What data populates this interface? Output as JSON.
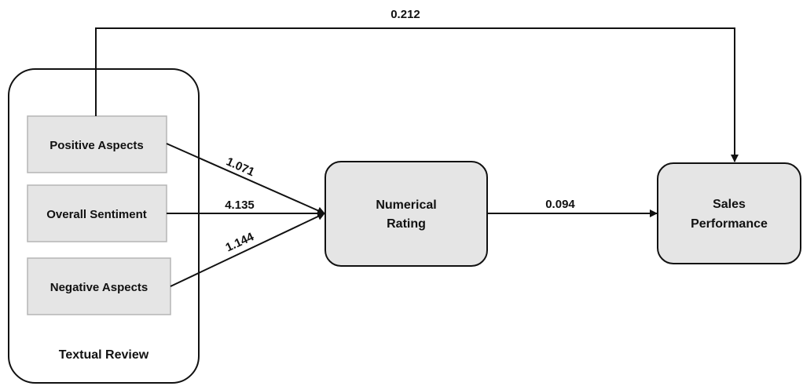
{
  "diagram": {
    "group": {
      "label": "Textual Review"
    },
    "inputs": [
      {
        "label": "Positive Aspects"
      },
      {
        "label": "Overall Sentiment"
      },
      {
        "label": "Negative Aspects"
      }
    ],
    "nodes": {
      "numerical_rating": {
        "line1": "Numerical",
        "line2": "Rating"
      },
      "sales_performance": {
        "line1": "Sales",
        "line2": "Performance"
      }
    },
    "edges": {
      "positive_to_rating": "1.071",
      "sentiment_to_rating": "4.135",
      "negative_to_rating": "1.144",
      "rating_to_sales": "0.094",
      "review_to_sales": "0.212"
    },
    "colors": {
      "box_fill": "#e5e5e5",
      "inner_box_stroke": "#b5b5b5",
      "stroke": "#111111"
    }
  }
}
